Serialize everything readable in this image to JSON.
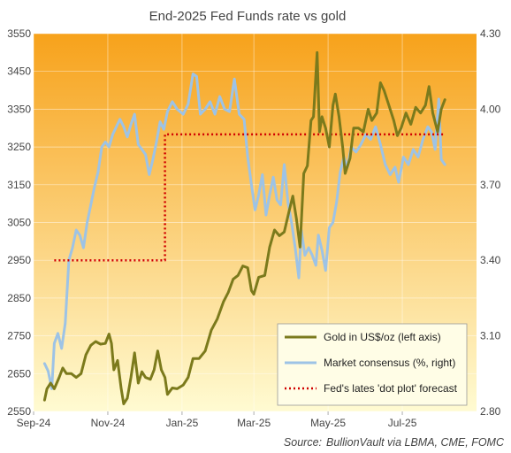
{
  "chart_data": {
    "type": "line",
    "title": "End-2025 Fed Funds rate vs gold",
    "source_label": "Source:",
    "source_text": "BullionVault via LBMA, CME, FOMC",
    "x_tick_labels": [
      "Sep-24",
      "Nov-24",
      "Jan-25",
      "Mar-25",
      "May-25",
      "Jul-25"
    ],
    "x_ticks": [
      "2024-09-01",
      "2024-11-01",
      "2025-01-01",
      "2025-03-01",
      "2025-05-01",
      "2025-07-01"
    ],
    "xlim": [
      "2024-09-01",
      "2025-08-31"
    ],
    "y_left": {
      "ylim": [
        2550,
        3550
      ],
      "ticks": [
        "2550",
        "2650",
        "2750",
        "2850",
        "2950",
        "3050",
        "3150",
        "3250",
        "3350",
        "3450",
        "3550"
      ]
    },
    "y_right": {
      "ylim": [
        2.8,
        4.3
      ],
      "ticks": [
        "2.80",
        "3.10",
        "3.40",
        "3.70",
        "4.00",
        "4.30"
      ]
    },
    "grid": true,
    "legend_position": "bottom-right",
    "background": {
      "top_color": "#f7a21b",
      "bottom_color": "#fffbd2"
    },
    "series": [
      {
        "name": "Gold in US$/oz (left axis)",
        "axis": "left",
        "color": "#7b7a1c",
        "style": "solid",
        "points": [
          [
            "2024-09-10",
            2580
          ],
          [
            "2024-09-12",
            2610
          ],
          [
            "2024-09-15",
            2625
          ],
          [
            "2024-09-18",
            2610
          ],
          [
            "2024-09-22",
            2640
          ],
          [
            "2024-09-25",
            2665
          ],
          [
            "2024-09-28",
            2650
          ],
          [
            "2024-10-02",
            2650
          ],
          [
            "2024-10-06",
            2640
          ],
          [
            "2024-10-10",
            2650
          ],
          [
            "2024-10-14",
            2700
          ],
          [
            "2024-10-18",
            2725
          ],
          [
            "2024-10-22",
            2735
          ],
          [
            "2024-10-26",
            2728
          ],
          [
            "2024-10-30",
            2730
          ],
          [
            "2024-11-02",
            2755
          ],
          [
            "2024-11-04",
            2730
          ],
          [
            "2024-11-06",
            2660
          ],
          [
            "2024-11-09",
            2685
          ],
          [
            "2024-11-12",
            2610
          ],
          [
            "2024-11-14",
            2570
          ],
          [
            "2024-11-17",
            2585
          ],
          [
            "2024-11-20",
            2640
          ],
          [
            "2024-11-23",
            2705
          ],
          [
            "2024-11-26",
            2625
          ],
          [
            "2024-11-29",
            2655
          ],
          [
            "2024-12-02",
            2640
          ],
          [
            "2024-12-06",
            2635
          ],
          [
            "2024-12-09",
            2660
          ],
          [
            "2024-12-12",
            2710
          ],
          [
            "2024-12-15",
            2660
          ],
          [
            "2024-12-18",
            2640
          ],
          [
            "2024-12-20",
            2595
          ],
          [
            "2024-12-24",
            2612
          ],
          [
            "2024-12-28",
            2610
          ],
          [
            "2025-01-02",
            2620
          ],
          [
            "2025-01-06",
            2640
          ],
          [
            "2025-01-10",
            2690
          ],
          [
            "2025-01-15",
            2690
          ],
          [
            "2025-01-20",
            2710
          ],
          [
            "2025-01-25",
            2765
          ],
          [
            "2025-01-30",
            2795
          ],
          [
            "2025-02-04",
            2840
          ],
          [
            "2025-02-08",
            2865
          ],
          [
            "2025-02-12",
            2900
          ],
          [
            "2025-02-16",
            2910
          ],
          [
            "2025-02-20",
            2935
          ],
          [
            "2025-02-24",
            2930
          ],
          [
            "2025-02-27",
            2870
          ],
          [
            "2025-03-01",
            2860
          ],
          [
            "2025-03-05",
            2905
          ],
          [
            "2025-03-10",
            2910
          ],
          [
            "2025-03-14",
            2985
          ],
          [
            "2025-03-18",
            3030
          ],
          [
            "2025-03-22",
            3015
          ],
          [
            "2025-03-26",
            3025
          ],
          [
            "2025-03-30",
            3080
          ],
          [
            "2025-04-02",
            3120
          ],
          [
            "2025-04-05",
            3060
          ],
          [
            "2025-04-08",
            2985
          ],
          [
            "2025-04-11",
            3180
          ],
          [
            "2025-04-14",
            3200
          ],
          [
            "2025-04-17",
            3320
          ],
          [
            "2025-04-19",
            3330
          ],
          [
            "2025-04-22",
            3500
          ],
          [
            "2025-04-24",
            3290
          ],
          [
            "2025-04-26",
            3330
          ],
          [
            "2025-04-29",
            3300
          ],
          [
            "2025-05-02",
            3250
          ],
          [
            "2025-05-05",
            3360
          ],
          [
            "2025-05-07",
            3390
          ],
          [
            "2025-05-10",
            3330
          ],
          [
            "2025-05-13",
            3250
          ],
          [
            "2025-05-15",
            3180
          ],
          [
            "2025-05-19",
            3220
          ],
          [
            "2025-05-22",
            3300
          ],
          [
            "2025-05-26",
            3300
          ],
          [
            "2025-05-30",
            3290
          ],
          [
            "2025-06-03",
            3350
          ],
          [
            "2025-06-06",
            3320
          ],
          [
            "2025-06-10",
            3340
          ],
          [
            "2025-06-13",
            3420
          ],
          [
            "2025-06-16",
            3400
          ],
          [
            "2025-06-20",
            3360
          ],
          [
            "2025-06-24",
            3320
          ],
          [
            "2025-06-27",
            3280
          ],
          [
            "2025-06-30",
            3300
          ],
          [
            "2025-07-04",
            3340
          ],
          [
            "2025-07-08",
            3310
          ],
          [
            "2025-07-12",
            3355
          ],
          [
            "2025-07-16",
            3340
          ],
          [
            "2025-07-20",
            3360
          ],
          [
            "2025-07-23",
            3410
          ],
          [
            "2025-07-26",
            3340
          ],
          [
            "2025-07-30",
            3290
          ],
          [
            "2025-08-02",
            3350
          ],
          [
            "2025-08-05",
            3375
          ]
        ]
      },
      {
        "name": "Market consensus (%, right)",
        "axis": "right",
        "color": "#9dc3e6",
        "style": "solid",
        "points": [
          [
            "2024-09-10",
            2.99
          ],
          [
            "2024-09-13",
            2.96
          ],
          [
            "2024-09-16",
            2.89
          ],
          [
            "2024-09-18",
            3.07
          ],
          [
            "2024-09-21",
            3.11
          ],
          [
            "2024-09-24",
            3.05
          ],
          [
            "2024-09-27",
            3.15
          ],
          [
            "2024-09-30",
            3.4
          ],
          [
            "2024-10-03",
            3.45
          ],
          [
            "2024-10-06",
            3.52
          ],
          [
            "2024-10-09",
            3.5
          ],
          [
            "2024-10-12",
            3.45
          ],
          [
            "2024-10-15",
            3.55
          ],
          [
            "2024-10-18",
            3.62
          ],
          [
            "2024-10-21",
            3.69
          ],
          [
            "2024-10-24",
            3.75
          ],
          [
            "2024-10-27",
            3.85
          ],
          [
            "2024-10-30",
            3.87
          ],
          [
            "2024-11-02",
            3.85
          ],
          [
            "2024-11-05",
            3.9
          ],
          [
            "2024-11-08",
            3.93
          ],
          [
            "2024-11-11",
            3.96
          ],
          [
            "2024-11-14",
            3.93
          ],
          [
            "2024-11-17",
            3.89
          ],
          [
            "2024-11-20",
            3.94
          ],
          [
            "2024-11-23",
            3.98
          ],
          [
            "2024-11-26",
            3.86
          ],
          [
            "2024-11-29",
            3.84
          ],
          [
            "2024-12-02",
            3.82
          ],
          [
            "2024-12-05",
            3.74
          ],
          [
            "2024-12-08",
            3.8
          ],
          [
            "2024-12-11",
            3.87
          ],
          [
            "2024-12-14",
            3.95
          ],
          [
            "2024-12-17",
            3.92
          ],
          [
            "2024-12-20",
            3.99
          ],
          [
            "2024-12-24",
            4.03
          ],
          [
            "2024-12-28",
            4.0
          ],
          [
            "2025-01-02",
            3.98
          ],
          [
            "2025-01-06",
            4.02
          ],
          [
            "2025-01-10",
            4.14
          ],
          [
            "2025-01-13",
            4.13
          ],
          [
            "2025-01-16",
            3.98
          ],
          [
            "2025-01-20",
            4.0
          ],
          [
            "2025-01-24",
            4.03
          ],
          [
            "2025-01-28",
            3.98
          ],
          [
            "2025-02-01",
            4.05
          ],
          [
            "2025-02-05",
            4.0
          ],
          [
            "2025-02-09",
            3.99
          ],
          [
            "2025-02-13",
            4.12
          ],
          [
            "2025-02-17",
            3.98
          ],
          [
            "2025-02-21",
            3.96
          ],
          [
            "2025-02-24",
            3.81
          ],
          [
            "2025-02-27",
            3.7
          ],
          [
            "2025-03-02",
            3.6
          ],
          [
            "2025-03-05",
            3.66
          ],
          [
            "2025-03-08",
            3.74
          ],
          [
            "2025-03-11",
            3.58
          ],
          [
            "2025-03-14",
            3.66
          ],
          [
            "2025-03-17",
            3.73
          ],
          [
            "2025-03-20",
            3.64
          ],
          [
            "2025-03-23",
            3.62
          ],
          [
            "2025-03-26",
            3.78
          ],
          [
            "2025-03-29",
            3.63
          ],
          [
            "2025-04-01",
            3.55
          ],
          [
            "2025-04-04",
            3.45
          ],
          [
            "2025-04-07",
            3.33
          ],
          [
            "2025-04-09",
            3.52
          ],
          [
            "2025-04-12",
            3.42
          ],
          [
            "2025-04-15",
            3.45
          ],
          [
            "2025-04-18",
            3.42
          ],
          [
            "2025-04-21",
            3.38
          ],
          [
            "2025-04-23",
            3.5
          ],
          [
            "2025-04-26",
            3.44
          ],
          [
            "2025-04-29",
            3.36
          ],
          [
            "2025-05-02",
            3.53
          ],
          [
            "2025-05-05",
            3.55
          ],
          [
            "2025-05-08",
            3.63
          ],
          [
            "2025-05-11",
            3.75
          ],
          [
            "2025-05-14",
            3.81
          ],
          [
            "2025-05-17",
            3.77
          ],
          [
            "2025-05-20",
            3.85
          ],
          [
            "2025-05-24",
            3.83
          ],
          [
            "2025-05-28",
            3.86
          ],
          [
            "2025-06-01",
            3.9
          ],
          [
            "2025-06-05",
            3.88
          ],
          [
            "2025-06-09",
            3.93
          ],
          [
            "2025-06-13",
            3.86
          ],
          [
            "2025-06-17",
            3.78
          ],
          [
            "2025-06-21",
            3.74
          ],
          [
            "2025-06-25",
            3.77
          ],
          [
            "2025-06-28",
            3.71
          ],
          [
            "2025-07-02",
            3.81
          ],
          [
            "2025-07-06",
            3.78
          ],
          [
            "2025-07-10",
            3.84
          ],
          [
            "2025-07-14",
            3.81
          ],
          [
            "2025-07-18",
            3.88
          ],
          [
            "2025-07-22",
            3.93
          ],
          [
            "2025-07-25",
            3.91
          ],
          [
            "2025-07-28",
            3.84
          ],
          [
            "2025-07-31",
            4.04
          ],
          [
            "2025-08-02",
            3.8
          ],
          [
            "2025-08-05",
            3.78
          ]
        ]
      },
      {
        "name": "Fed's lates 'dot plot' forecast",
        "axis": "right",
        "color": "#d00000",
        "style": "dotted",
        "points": [
          [
            "2024-09-18",
            3.4
          ],
          [
            "2024-12-18",
            3.4
          ],
          [
            "2024-12-18",
            3.9
          ],
          [
            "2025-08-05",
            3.9
          ]
        ]
      }
    ]
  }
}
